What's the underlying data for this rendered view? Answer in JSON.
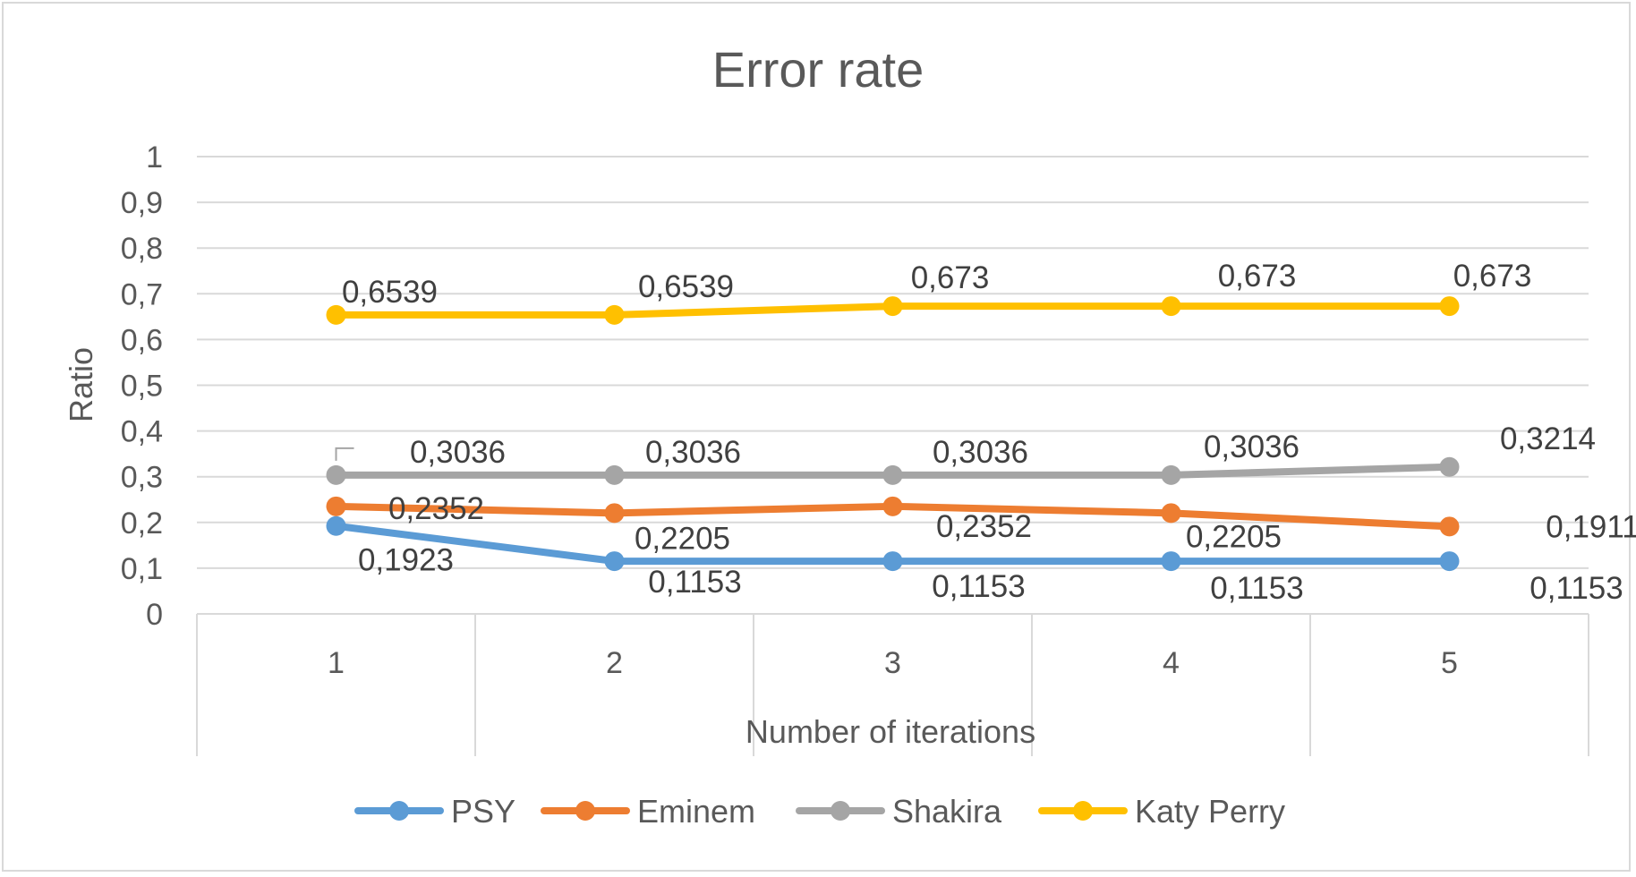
{
  "chart_data": {
    "type": "line",
    "title": "Error rate",
    "xlabel": "Number of iterations",
    "ylabel": "Ratio",
    "x": [
      1,
      2,
      3,
      4,
      5
    ],
    "ylim": [
      0,
      1
    ],
    "yticks": [
      0,
      0.1,
      0.2,
      0.3,
      0.4,
      0.5,
      0.6,
      0.7,
      0.8,
      0.9,
      1
    ],
    "ytick_labels": [
      "0",
      "0,1",
      "0,2",
      "0,3",
      "0,4",
      "0,5",
      "0,6",
      "0,7",
      "0,8",
      "0,9",
      "1"
    ],
    "xtick_labels": [
      "1",
      "2",
      "3",
      "4",
      "5"
    ],
    "grid": true,
    "legend": "bottom",
    "series": [
      {
        "name": "PSY",
        "color": "#5b9bd5",
        "values": [
          0.1923,
          0.1153,
          0.1153,
          0.1153,
          0.1153
        ],
        "labels": [
          "0,1923",
          "0,1153",
          "0,1153",
          "0,1153",
          "0,1153"
        ]
      },
      {
        "name": "Eminem",
        "color": "#ed7d31",
        "values": [
          0.2352,
          0.2205,
          0.2352,
          0.2205,
          0.1911
        ],
        "labels": [
          "0,2352",
          "0,2205",
          "0,2352",
          "0,2205",
          "0,1911"
        ]
      },
      {
        "name": "Shakira",
        "color": "#a5a5a5",
        "values": [
          0.3036,
          0.3036,
          0.3036,
          0.3036,
          0.3214
        ],
        "labels": [
          "0,3036",
          "0,3036",
          "0,3036",
          "0,3036",
          "0,3214"
        ]
      },
      {
        "name": "Katy Perry",
        "color": "#ffc000",
        "values": [
          0.6539,
          0.6539,
          0.673,
          0.673,
          0.673
        ],
        "labels": [
          "0,6539",
          "0,6539",
          "0,673",
          "0,673",
          "0,673"
        ]
      }
    ]
  }
}
